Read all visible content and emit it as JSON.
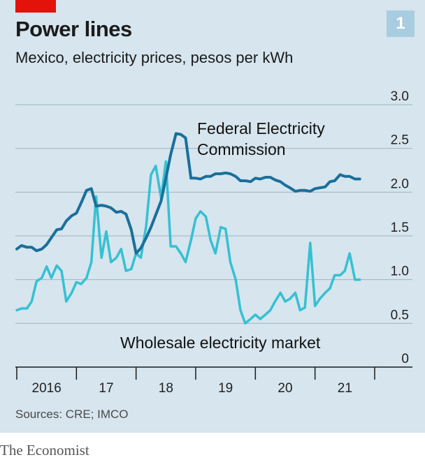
{
  "header": {
    "title": "Power lines",
    "subtitle": "Mexico, electricity prices, pesos per kWh",
    "badge": "1"
  },
  "footer": {
    "source": "Sources: CRE; IMCO",
    "publisher": "The Economist"
  },
  "colors": {
    "background": "#d6e5ee",
    "federal": "#1a6f9a",
    "wholesale": "#36c0d3",
    "accent_red": "#e3120b",
    "grid": "#9fb4c1"
  },
  "chart_data": {
    "type": "line",
    "title": "Power lines",
    "subtitle": "Mexico, electricity prices, pesos per kWh",
    "y_ticks": [
      "0",
      "0.5",
      "1.0",
      "1.5",
      "2.0",
      "2.5",
      "3.0"
    ],
    "ylim": [
      0,
      3.0
    ],
    "x_tick_labels": [
      "2016",
      "17",
      "18",
      "19",
      "20",
      "21"
    ],
    "xlim": [
      2016,
      2022
    ],
    "grid": true,
    "series": [
      {
        "name": "Federal Electricity Commission",
        "label_lines": [
          "Federal Electricity",
          "Commission"
        ],
        "color": "#1a6f9a",
        "x": [
          2016.0,
          2016.08,
          2016.17,
          2016.25,
          2016.33,
          2016.42,
          2016.5,
          2016.58,
          2016.67,
          2016.75,
          2016.83,
          2016.92,
          2017.0,
          2017.08,
          2017.17,
          2017.25,
          2017.33,
          2017.42,
          2017.5,
          2017.58,
          2017.67,
          2017.75,
          2017.83,
          2017.92,
          2018.0,
          2018.08,
          2018.17,
          2018.25,
          2018.33,
          2018.42,
          2018.5,
          2018.58,
          2018.67,
          2018.75,
          2018.83,
          2018.92,
          2019.0,
          2019.08,
          2019.17,
          2019.25,
          2019.33,
          2019.42,
          2019.5,
          2019.58,
          2019.67,
          2019.75,
          2019.83,
          2019.92,
          2020.0,
          2020.08,
          2020.17,
          2020.25,
          2020.33,
          2020.42,
          2020.5,
          2020.58,
          2020.67,
          2020.75,
          2020.83,
          2020.92,
          2021.0,
          2021.08,
          2021.17,
          2021.25,
          2021.33,
          2021.42,
          2021.5,
          2021.58,
          2021.67,
          2021.75
        ],
        "values": [
          1.35,
          1.39,
          1.37,
          1.37,
          1.33,
          1.35,
          1.4,
          1.48,
          1.57,
          1.58,
          1.67,
          1.73,
          1.76,
          1.88,
          2.02,
          2.04,
          1.84,
          1.85,
          1.84,
          1.82,
          1.77,
          1.78,
          1.75,
          1.57,
          1.3,
          1.36,
          1.48,
          1.6,
          1.74,
          1.9,
          2.16,
          2.43,
          2.67,
          2.66,
          2.62,
          2.16,
          2.16,
          2.15,
          2.18,
          2.18,
          2.21,
          2.21,
          2.22,
          2.21,
          2.18,
          2.13,
          2.13,
          2.12,
          2.16,
          2.15,
          2.17,
          2.17,
          2.14,
          2.12,
          2.08,
          2.05,
          2.01,
          2.02,
          2.02,
          2.01,
          2.04,
          2.05,
          2.06,
          2.12,
          2.13,
          2.2,
          2.18,
          2.18,
          2.15,
          2.15
        ]
      },
      {
        "name": "Wholesale electricity market",
        "label_lines": [
          "Wholesale electricity market"
        ],
        "color": "#36c0d3",
        "x": [
          2016.0,
          2016.08,
          2016.17,
          2016.25,
          2016.33,
          2016.42,
          2016.5,
          2016.58,
          2016.67,
          2016.75,
          2016.83,
          2016.92,
          2017.0,
          2017.08,
          2017.17,
          2017.25,
          2017.33,
          2017.42,
          2017.5,
          2017.58,
          2017.67,
          2017.75,
          2017.83,
          2017.92,
          2018.0,
          2018.08,
          2018.17,
          2018.25,
          2018.33,
          2018.42,
          2018.5,
          2018.58,
          2018.67,
          2018.75,
          2018.83,
          2018.92,
          2019.0,
          2019.08,
          2019.17,
          2019.25,
          2019.33,
          2019.42,
          2019.5,
          2019.58,
          2019.67,
          2019.75,
          2019.83,
          2019.92,
          2020.0,
          2020.08,
          2020.17,
          2020.25,
          2020.33,
          2020.42,
          2020.5,
          2020.58,
          2020.67,
          2020.75,
          2020.83,
          2020.92,
          2021.0,
          2021.08,
          2021.17,
          2021.25,
          2021.33,
          2021.42,
          2021.5,
          2021.58,
          2021.67,
          2021.75
        ],
        "values": [
          0.65,
          0.67,
          0.67,
          0.75,
          0.98,
          1.02,
          1.15,
          1.02,
          1.16,
          1.1,
          0.75,
          0.85,
          0.97,
          0.95,
          1.02,
          1.2,
          1.95,
          1.25,
          1.55,
          1.2,
          1.25,
          1.35,
          1.1,
          1.12,
          1.3,
          1.25,
          1.62,
          2.2,
          2.3,
          1.93,
          2.35,
          1.38,
          1.38,
          1.3,
          1.2,
          1.45,
          1.7,
          1.78,
          1.72,
          1.45,
          1.3,
          1.6,
          1.58,
          1.2,
          1.0,
          0.65,
          0.5,
          0.55,
          0.6,
          0.55,
          0.6,
          0.65,
          0.75,
          0.85,
          0.75,
          0.78,
          0.85,
          0.65,
          0.68,
          1.42,
          0.7,
          0.78,
          0.85,
          0.9,
          1.05,
          1.05,
          1.1,
          1.3,
          1.0,
          1.0
        ]
      }
    ]
  }
}
